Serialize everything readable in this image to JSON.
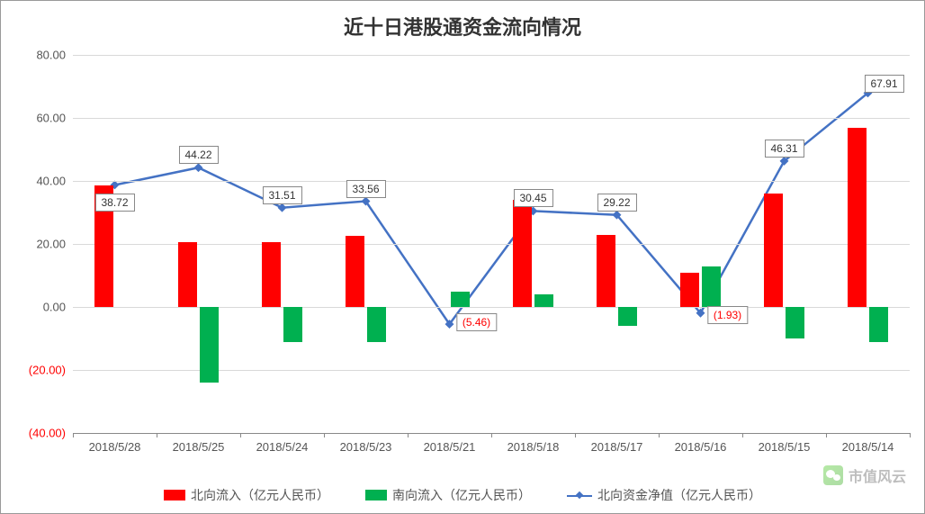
{
  "title": "近十日港股通资金流向情况",
  "chart": {
    "type": "bar+line",
    "background_color": "#ffffff",
    "grid_color": "#d9d9d9",
    "axis_color": "#888888",
    "title_fontsize": 22,
    "label_fontsize": 13,
    "ylim": [
      -40,
      80
    ],
    "ytick_step": 20,
    "yticks": [
      {
        "v": 80,
        "label": "80.00"
      },
      {
        "v": 60,
        "label": "60.00"
      },
      {
        "v": 40,
        "label": "40.00"
      },
      {
        "v": 20,
        "label": "20.00"
      },
      {
        "v": 0,
        "label": "0.00"
      },
      {
        "v": -20,
        "label": "(20.00)"
      },
      {
        "v": -40,
        "label": "(40.00)"
      }
    ],
    "categories": [
      "2018/5/28",
      "2018/5/25",
      "2018/5/24",
      "2018/5/23",
      "2018/5/21",
      "2018/5/18",
      "2018/5/17",
      "2018/5/16",
      "2018/5/15",
      "2018/5/14"
    ],
    "series": {
      "north": {
        "label": "北向流入（亿元人民币）",
        "color": "#ff0000",
        "values": [
          38.7,
          20.5,
          20.5,
          22.5,
          0,
          34,
          23,
          11,
          36,
          57
        ],
        "bar_width_ratio": 0.22
      },
      "south": {
        "label": "南向流入（亿元人民币）",
        "color": "#00b050",
        "values": [
          0,
          -24,
          -11,
          -11,
          5,
          4,
          -6,
          13,
          -10,
          -11
        ],
        "bar_width_ratio": 0.22
      },
      "net": {
        "label": "北向资金净值（亿元人民币）",
        "color": "#4472c4",
        "values": [
          38.72,
          44.22,
          31.51,
          33.56,
          -5.46,
          30.45,
          29.22,
          -1.93,
          46.31,
          67.91
        ],
        "line_width": 2.5,
        "marker": "diamond",
        "marker_size": 7,
        "data_labels": [
          {
            "i": 0,
            "text": "38.72",
            "neg": false,
            "dy": 20
          },
          {
            "i": 1,
            "text": "44.22",
            "neg": false,
            "dy": -14
          },
          {
            "i": 2,
            "text": "31.51",
            "neg": false,
            "dy": -14
          },
          {
            "i": 3,
            "text": "33.56",
            "neg": false,
            "dy": -14
          },
          {
            "i": 4,
            "text": "(5.46)",
            "neg": true,
            "dx": 30,
            "dy": -2
          },
          {
            "i": 5,
            "text": "30.45",
            "neg": false,
            "dy": -14
          },
          {
            "i": 6,
            "text": "29.22",
            "neg": false,
            "dy": -14
          },
          {
            "i": 7,
            "text": "(1.93)",
            "neg": true,
            "dx": 30,
            "dy": 2
          },
          {
            "i": 8,
            "text": "46.31",
            "neg": false,
            "dy": -14
          },
          {
            "i": 9,
            "text": "67.91",
            "neg": false,
            "dx": 18,
            "dy": -10
          }
        ]
      }
    }
  },
  "legend_items": [
    {
      "key": "north",
      "type": "swatch"
    },
    {
      "key": "south",
      "type": "swatch"
    },
    {
      "key": "net",
      "type": "line"
    }
  ],
  "watermark": "市值风云"
}
